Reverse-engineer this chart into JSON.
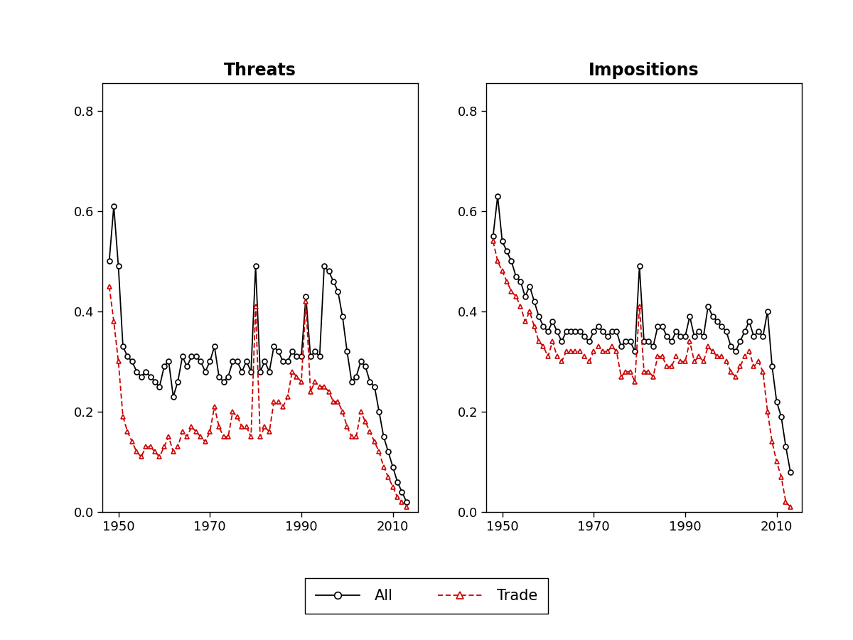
{
  "years": [
    1948,
    1949,
    1950,
    1951,
    1952,
    1953,
    1954,
    1955,
    1956,
    1957,
    1958,
    1959,
    1960,
    1961,
    1962,
    1963,
    1964,
    1965,
    1966,
    1967,
    1968,
    1969,
    1970,
    1971,
    1972,
    1973,
    1974,
    1975,
    1976,
    1977,
    1978,
    1979,
    1980,
    1981,
    1982,
    1983,
    1984,
    1985,
    1986,
    1987,
    1988,
    1989,
    1990,
    1991,
    1992,
    1993,
    1994,
    1995,
    1996,
    1997,
    1998,
    1999,
    2000,
    2001,
    2002,
    2003,
    2004,
    2005,
    2006,
    2007,
    2008,
    2009,
    2010,
    2011,
    2012,
    2013
  ],
  "threats_all": [
    0.5,
    0.61,
    0.49,
    0.33,
    0.31,
    0.3,
    0.28,
    0.27,
    0.28,
    0.27,
    0.26,
    0.25,
    0.29,
    0.3,
    0.23,
    0.26,
    0.31,
    0.29,
    0.31,
    0.31,
    0.3,
    0.28,
    0.3,
    0.33,
    0.27,
    0.26,
    0.27,
    0.3,
    0.3,
    0.28,
    0.3,
    0.28,
    0.49,
    0.28,
    0.3,
    0.28,
    0.33,
    0.32,
    0.3,
    0.3,
    0.32,
    0.31,
    0.31,
    0.43,
    0.31,
    0.32,
    0.31,
    0.49,
    0.48,
    0.46,
    0.44,
    0.39,
    0.32,
    0.26,
    0.27,
    0.3,
    0.29,
    0.26,
    0.25,
    0.2,
    0.15,
    0.12,
    0.09,
    0.06,
    0.04,
    0.02
  ],
  "threats_trade": [
    0.45,
    0.38,
    0.3,
    0.19,
    0.16,
    0.14,
    0.12,
    0.11,
    0.13,
    0.13,
    0.12,
    0.11,
    0.13,
    0.15,
    0.12,
    0.13,
    0.16,
    0.15,
    0.17,
    0.16,
    0.15,
    0.14,
    0.16,
    0.21,
    0.17,
    0.15,
    0.15,
    0.2,
    0.19,
    0.17,
    0.17,
    0.15,
    0.41,
    0.15,
    0.17,
    0.16,
    0.22,
    0.22,
    0.21,
    0.23,
    0.28,
    0.27,
    0.26,
    0.42,
    0.24,
    0.26,
    0.25,
    0.25,
    0.24,
    0.22,
    0.22,
    0.2,
    0.17,
    0.15,
    0.15,
    0.2,
    0.18,
    0.16,
    0.14,
    0.12,
    0.09,
    0.07,
    0.05,
    0.03,
    0.02,
    0.01
  ],
  "impositions_all": [
    0.55,
    0.63,
    0.54,
    0.52,
    0.5,
    0.47,
    0.46,
    0.43,
    0.45,
    0.42,
    0.39,
    0.37,
    0.36,
    0.38,
    0.36,
    0.34,
    0.36,
    0.36,
    0.36,
    0.36,
    0.35,
    0.34,
    0.36,
    0.37,
    0.36,
    0.35,
    0.36,
    0.36,
    0.33,
    0.34,
    0.34,
    0.32,
    0.49,
    0.34,
    0.34,
    0.33,
    0.37,
    0.37,
    0.35,
    0.34,
    0.36,
    0.35,
    0.35,
    0.39,
    0.35,
    0.36,
    0.35,
    0.41,
    0.39,
    0.38,
    0.37,
    0.36,
    0.33,
    0.32,
    0.34,
    0.36,
    0.38,
    0.35,
    0.36,
    0.35,
    0.4,
    0.29,
    0.22,
    0.19,
    0.13,
    0.08
  ],
  "impositions_trade": [
    0.54,
    0.5,
    0.48,
    0.46,
    0.44,
    0.43,
    0.41,
    0.38,
    0.4,
    0.37,
    0.34,
    0.33,
    0.31,
    0.34,
    0.31,
    0.3,
    0.32,
    0.32,
    0.32,
    0.32,
    0.31,
    0.3,
    0.32,
    0.33,
    0.32,
    0.32,
    0.33,
    0.32,
    0.27,
    0.28,
    0.28,
    0.26,
    0.41,
    0.28,
    0.28,
    0.27,
    0.31,
    0.31,
    0.29,
    0.29,
    0.31,
    0.3,
    0.3,
    0.34,
    0.3,
    0.31,
    0.3,
    0.33,
    0.32,
    0.31,
    0.31,
    0.3,
    0.28,
    0.27,
    0.29,
    0.31,
    0.32,
    0.29,
    0.3,
    0.28,
    0.2,
    0.14,
    0.1,
    0.07,
    0.02,
    0.01
  ],
  "title_threats": "Threats",
  "title_impositions": "Impositions",
  "legend_all": "All",
  "legend_trade": "Trade",
  "ylim": [
    0,
    0.855
  ],
  "yticks": [
    0.0,
    0.2,
    0.4,
    0.6,
    0.8
  ],
  "xticks": [
    1950,
    1970,
    1990,
    2010
  ],
  "xlim": [
    1946.5,
    2015.5
  ],
  "bg_color": "#ffffff",
  "line_color_all": "#000000",
  "line_color_trade": "#cc0000",
  "marker_all": "o",
  "marker_trade": "^",
  "title_fontsize": 17,
  "tick_fontsize": 13,
  "legend_fontsize": 15
}
